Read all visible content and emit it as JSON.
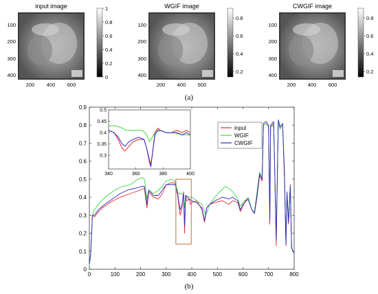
{
  "figure": {
    "panel_a_label": "(a)",
    "panel_b_label": "(b)"
  },
  "panel_a": {
    "images": [
      {
        "title": "input image",
        "colorbar_ticks": [
          "1",
          "0.8",
          "0.6",
          "0.4",
          "0.2",
          "0"
        ]
      },
      {
        "title": "WGIF image",
        "colorbar_ticks": [
          "0.8",
          "0.6",
          "0.4",
          "0.2"
        ]
      },
      {
        "title": "CWGIF image",
        "colorbar_ticks": [
          "0.8",
          "0.6",
          "0.4",
          "0.2"
        ]
      }
    ],
    "x_ticks": [
      "200",
      "400",
      "600"
    ],
    "y_ticks": [
      "100",
      "200",
      "300",
      "400"
    ]
  },
  "chart_data": [
    {
      "type": "line",
      "grid": false,
      "legend": "right, inside plot",
      "xlim": [
        0,
        800
      ],
      "ylim": [
        0,
        0.9
      ],
      "x_ticks": [
        0,
        100,
        200,
        300,
        400,
        500,
        600,
        700,
        800
      ],
      "y_ticks": [
        0,
        0.1,
        0.2,
        0.3,
        0.4,
        0.5,
        0.6,
        0.7,
        0.8,
        0.9
      ],
      "highlight_box": {
        "x": [
          338,
          398
        ],
        "y": [
          0.14,
          0.5
        ],
        "color": "#b8733a"
      },
      "series": [
        {
          "name": "input",
          "color": "#e8262b",
          "points": [
            [
              0,
              0.03
            ],
            [
              5,
              0.08
            ],
            [
              12,
              0.3
            ],
            [
              20,
              0.29
            ],
            [
              30,
              0.31
            ],
            [
              50,
              0.34
            ],
            [
              80,
              0.37
            ],
            [
              120,
              0.4
            ],
            [
              160,
              0.42
            ],
            [
              200,
              0.44
            ],
            [
              215,
              0.45
            ],
            [
              225,
              0.34
            ],
            [
              232,
              0.43
            ],
            [
              250,
              0.4
            ],
            [
              270,
              0.39
            ],
            [
              285,
              0.42
            ],
            [
              300,
              0.47
            ],
            [
              320,
              0.48
            ],
            [
              335,
              0.48
            ],
            [
              345,
              0.41
            ],
            [
              350,
              0.35
            ],
            [
              355,
              0.3
            ],
            [
              362,
              0.34
            ],
            [
              368,
              0.43
            ],
            [
              372,
              0.2
            ],
            [
              376,
              0.41
            ],
            [
              380,
              0.38
            ],
            [
              390,
              0.39
            ],
            [
              395,
              0.36
            ],
            [
              400,
              0.37
            ],
            [
              420,
              0.38
            ],
            [
              440,
              0.33
            ],
            [
              450,
              0.26
            ],
            [
              458,
              0.34
            ],
            [
              470,
              0.36
            ],
            [
              490,
              0.37
            ],
            [
              520,
              0.38
            ],
            [
              545,
              0.36
            ],
            [
              560,
              0.38
            ],
            [
              580,
              0.37
            ],
            [
              590,
              0.32
            ],
            [
              600,
              0.35
            ],
            [
              610,
              0.38
            ],
            [
              620,
              0.39
            ],
            [
              635,
              0.33
            ],
            [
              645,
              0.31
            ],
            [
              655,
              0.4
            ],
            [
              665,
              0.52
            ],
            [
              675,
              0.49
            ],
            [
              680,
              0.8
            ],
            [
              690,
              0.81
            ],
            [
              700,
              0.79
            ],
            [
              705,
              0.25
            ],
            [
              708,
              0.79
            ],
            [
              720,
              0.81
            ],
            [
              730,
              0.13
            ],
            [
              738,
              0.82
            ],
            [
              745,
              0.78
            ],
            [
              755,
              0.8
            ],
            [
              762,
              0.55
            ],
            [
              768,
              0.13
            ],
            [
              772,
              0.42
            ],
            [
              778,
              0.25
            ],
            [
              785,
              0.47
            ],
            [
              790,
              0.12
            ],
            [
              795,
              0.1
            ],
            [
              800,
              0.09
            ]
          ]
        },
        {
          "name": "WGIF",
          "color": "#3bd63b",
          "points": [
            [
              0,
              0.02
            ],
            [
              5,
              0.08
            ],
            [
              12,
              0.3
            ],
            [
              20,
              0.33
            ],
            [
              40,
              0.37
            ],
            [
              70,
              0.41
            ],
            [
              100,
              0.44
            ],
            [
              130,
              0.46
            ],
            [
              160,
              0.47
            ],
            [
              190,
              0.5
            ],
            [
              205,
              0.51
            ],
            [
              215,
              0.5
            ],
            [
              225,
              0.39
            ],
            [
              232,
              0.44
            ],
            [
              250,
              0.42
            ],
            [
              270,
              0.44
            ],
            [
              285,
              0.46
            ],
            [
              300,
              0.49
            ],
            [
              320,
              0.5
            ],
            [
              335,
              0.49
            ],
            [
              345,
              0.43
            ],
            [
              350,
              0.42
            ],
            [
              355,
              0.42
            ],
            [
              362,
              0.42
            ],
            [
              368,
              0.41
            ],
            [
              372,
              0.34
            ],
            [
              376,
              0.41
            ],
            [
              390,
              0.4
            ],
            [
              400,
              0.4
            ],
            [
              420,
              0.38
            ],
            [
              440,
              0.36
            ],
            [
              455,
              0.3
            ],
            [
              470,
              0.36
            ],
            [
              490,
              0.4
            ],
            [
              510,
              0.43
            ],
            [
              530,
              0.46
            ],
            [
              545,
              0.45
            ],
            [
              560,
              0.43
            ],
            [
              580,
              0.39
            ],
            [
              590,
              0.35
            ],
            [
              600,
              0.37
            ],
            [
              620,
              0.4
            ],
            [
              635,
              0.33
            ],
            [
              645,
              0.32
            ],
            [
              655,
              0.43
            ],
            [
              665,
              0.54
            ],
            [
              675,
              0.51
            ],
            [
              680,
              0.8
            ],
            [
              690,
              0.81
            ],
            [
              700,
              0.79
            ],
            [
              705,
              0.3
            ],
            [
              708,
              0.79
            ],
            [
              720,
              0.8
            ],
            [
              730,
              0.2
            ],
            [
              738,
              0.82
            ],
            [
              745,
              0.78
            ],
            [
              755,
              0.8
            ],
            [
              762,
              0.5
            ],
            [
              768,
              0.15
            ],
            [
              772,
              0.42
            ],
            [
              778,
              0.28
            ],
            [
              785,
              0.46
            ],
            [
              790,
              0.13
            ],
            [
              795,
              0.1
            ],
            [
              800,
              0.09
            ]
          ]
        },
        {
          "name": "CWGIF",
          "color": "#2828c8",
          "points": [
            [
              0,
              0.03
            ],
            [
              5,
              0.08
            ],
            [
              12,
              0.3
            ],
            [
              20,
              0.3
            ],
            [
              35,
              0.33
            ],
            [
              60,
              0.36
            ],
            [
              90,
              0.39
            ],
            [
              120,
              0.42
            ],
            [
              150,
              0.44
            ],
            [
              180,
              0.45
            ],
            [
              205,
              0.46
            ],
            [
              215,
              0.46
            ],
            [
              225,
              0.36
            ],
            [
              232,
              0.44
            ],
            [
              250,
              0.41
            ],
            [
              270,
              0.41
            ],
            [
              285,
              0.44
            ],
            [
              300,
              0.47
            ],
            [
              320,
              0.47
            ],
            [
              335,
              0.47
            ],
            [
              345,
              0.42
            ],
            [
              350,
              0.37
            ],
            [
              355,
              0.33
            ],
            [
              362,
              0.36
            ],
            [
              368,
              0.42
            ],
            [
              372,
              0.24
            ],
            [
              376,
              0.41
            ],
            [
              390,
              0.39
            ],
            [
              400,
              0.38
            ],
            [
              420,
              0.37
            ],
            [
              440,
              0.34
            ],
            [
              450,
              0.27
            ],
            [
              458,
              0.34
            ],
            [
              470,
              0.36
            ],
            [
              490,
              0.38
            ],
            [
              520,
              0.4
            ],
            [
              545,
              0.39
            ],
            [
              560,
              0.4
            ],
            [
              580,
              0.38
            ],
            [
              590,
              0.33
            ],
            [
              600,
              0.36
            ],
            [
              620,
              0.39
            ],
            [
              635,
              0.33
            ],
            [
              645,
              0.31
            ],
            [
              655,
              0.41
            ],
            [
              665,
              0.53
            ],
            [
              675,
              0.5
            ],
            [
              680,
              0.81
            ],
            [
              690,
              0.82
            ],
            [
              700,
              0.8
            ],
            [
              705,
              0.27
            ],
            [
              708,
              0.8
            ],
            [
              720,
              0.82
            ],
            [
              730,
              0.16
            ],
            [
              738,
              0.83
            ],
            [
              745,
              0.79
            ],
            [
              755,
              0.81
            ],
            [
              762,
              0.52
            ],
            [
              768,
              0.14
            ],
            [
              772,
              0.43
            ],
            [
              778,
              0.26
            ],
            [
              785,
              0.46
            ],
            [
              790,
              0.12
            ],
            [
              795,
              0.1
            ],
            [
              800,
              0.09
            ]
          ]
        }
      ]
    },
    {
      "type": "line",
      "grid": false,
      "legend": "none",
      "xlim": [
        340,
        400
      ],
      "ylim": [
        0.24,
        0.5
      ],
      "x_ticks": [
        340,
        360,
        380,
        400
      ],
      "y_ticks": [
        0.3,
        0.35,
        0.4,
        0.45,
        0.5
      ],
      "series": [
        {
          "name": "input",
          "color": "#e8262b",
          "points": [
            [
              340,
              0.41
            ],
            [
              344,
              0.4
            ],
            [
              347,
              0.37
            ],
            [
              350,
              0.33
            ],
            [
              352,
              0.32
            ],
            [
              355,
              0.34
            ],
            [
              358,
              0.36
            ],
            [
              362,
              0.37
            ],
            [
              366,
              0.37
            ],
            [
              368,
              0.33
            ],
            [
              370,
              0.28
            ],
            [
              371,
              0.26
            ],
            [
              372,
              0.3
            ],
            [
              374,
              0.4
            ],
            [
              376,
              0.42
            ],
            [
              378,
              0.41
            ],
            [
              382,
              0.4
            ],
            [
              386,
              0.4
            ],
            [
              390,
              0.41
            ],
            [
              394,
              0.4
            ],
            [
              397,
              0.41
            ],
            [
              400,
              0.4
            ]
          ]
        },
        {
          "name": "WGIF",
          "color": "#3bd63b",
          "points": [
            [
              340,
              0.43
            ],
            [
              345,
              0.43
            ],
            [
              350,
              0.42
            ],
            [
              353,
              0.41
            ],
            [
              356,
              0.41
            ],
            [
              360,
              0.41
            ],
            [
              365,
              0.41
            ],
            [
              368,
              0.39
            ],
            [
              370,
              0.36
            ],
            [
              372,
              0.38
            ],
            [
              374,
              0.4
            ],
            [
              378,
              0.41
            ],
            [
              382,
              0.4
            ],
            [
              388,
              0.4
            ],
            [
              394,
              0.39
            ],
            [
              400,
              0.39
            ]
          ]
        },
        {
          "name": "CWGIF",
          "color": "#2828c8",
          "points": [
            [
              340,
              0.41
            ],
            [
              344,
              0.4
            ],
            [
              347,
              0.38
            ],
            [
              350,
              0.35
            ],
            [
              352,
              0.34
            ],
            [
              355,
              0.36
            ],
            [
              358,
              0.37
            ],
            [
              362,
              0.38
            ],
            [
              366,
              0.37
            ],
            [
              368,
              0.33
            ],
            [
              370,
              0.27
            ],
            [
              371,
              0.25
            ],
            [
              372,
              0.3
            ],
            [
              374,
              0.39
            ],
            [
              376,
              0.41
            ],
            [
              378,
              0.41
            ],
            [
              382,
              0.4
            ],
            [
              386,
              0.4
            ],
            [
              390,
              0.4
            ],
            [
              394,
              0.39
            ],
            [
              397,
              0.4
            ],
            [
              400,
              0.39
            ]
          ]
        }
      ]
    }
  ]
}
